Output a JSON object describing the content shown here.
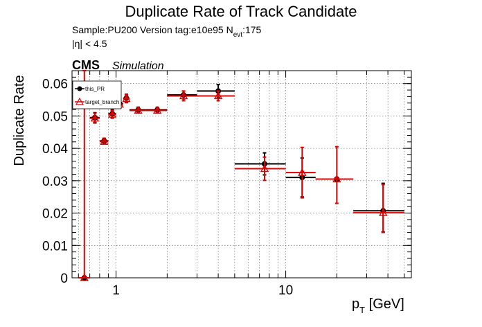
{
  "chart_data": {
    "type": "scatter",
    "title": "Duplicate Rate of Track Candidate",
    "info": {
      "sample_line_prefix": "Sample:PU200   Version tag:e10e95  N",
      "nevt_subscript": "evt",
      "nevt_value": ":175",
      "eta_cut": "|η| < 4.5"
    },
    "cms_label": "CMS",
    "simulation_label": "Simulation",
    "ylabel": "Duplicate Rate",
    "xlabel_main": "p",
    "xlabel_sub": "T",
    "xlabel_unit": " [GeV]",
    "x_scale": "log",
    "xlim": [
      0.55,
      55
    ],
    "ylim": [
      0,
      0.064
    ],
    "y_ticks": [
      0,
      0.01,
      0.02,
      0.03,
      0.04,
      0.05,
      0.06
    ],
    "y_tick_labels": [
      "0",
      "0.01",
      "0.02",
      "0.03",
      "0.04",
      "0.05",
      "0.06"
    ],
    "x_ticks": [
      1,
      10
    ],
    "x_tick_labels": [
      "1",
      "10"
    ],
    "grid": true,
    "legend_position": "top-left",
    "series": [
      {
        "name": "this_PR",
        "color": "#000000",
        "marker": "circle",
        "points": [
          {
            "x": 0.65,
            "xlo": 0.6,
            "xhi": 0.7,
            "y": 0.0,
            "elo": 0.0,
            "ehi": 0.0
          },
          {
            "x": 0.75,
            "xlo": 0.7,
            "xhi": 0.8,
            "y": 0.0495,
            "elo": 0.0015,
            "ehi": 0.0015
          },
          {
            "x": 0.85,
            "xlo": 0.8,
            "xhi": 0.9,
            "y": 0.0423,
            "elo": 0.0008,
            "ehi": 0.0008
          },
          {
            "x": 0.95,
            "xlo": 0.9,
            "xhi": 1.0,
            "y": 0.0507,
            "elo": 0.0012,
            "ehi": 0.0012
          },
          {
            "x": 1.05,
            "xlo": 1.0,
            "xhi": 1.1,
            "y": 0.0538,
            "elo": 0.0012,
            "ehi": 0.0012
          },
          {
            "x": 1.15,
            "xlo": 1.1,
            "xhi": 1.2,
            "y": 0.0555,
            "elo": 0.0012,
            "ehi": 0.0012
          },
          {
            "x": 1.35,
            "xlo": 1.2,
            "xhi": 1.5,
            "y": 0.0519,
            "elo": 0.0008,
            "ehi": 0.0008
          },
          {
            "x": 1.75,
            "xlo": 1.5,
            "xhi": 2.0,
            "y": 0.0519,
            "elo": 0.0008,
            "ehi": 0.0008
          },
          {
            "x": 2.5,
            "xlo": 2.0,
            "xhi": 3.0,
            "y": 0.0565,
            "elo": 0.0012,
            "ehi": 0.0012
          },
          {
            "x": 4.0,
            "xlo": 3.0,
            "xhi": 5.0,
            "y": 0.0577,
            "elo": 0.002,
            "ehi": 0.002
          },
          {
            "x": 7.5,
            "xlo": 5.0,
            "xhi": 10.0,
            "y": 0.0352,
            "elo": 0.0034,
            "ehi": 0.0034
          },
          {
            "x": 12.5,
            "xlo": 10.0,
            "xhi": 15.0,
            "y": 0.031,
            "elo": 0.006,
            "ehi": 0.006
          },
          {
            "x": 20.0,
            "xlo": 15.0,
            "xhi": 25.0,
            "y": 0.0305,
            "elo": 0.0005,
            "ehi": 0.0005
          },
          {
            "x": 37.5,
            "xlo": 25.0,
            "xhi": 50.0,
            "y": 0.0207,
            "elo": 0.0065,
            "ehi": 0.0085
          }
        ]
      },
      {
        "name": "target_branch",
        "color": "#dd0000",
        "marker": "triangle",
        "points": [
          {
            "x": 0.65,
            "xlo": 0.6,
            "xhi": 0.7,
            "y": 0.0,
            "elo": 0.0,
            "ehi": 0.064
          },
          {
            "x": 0.75,
            "xlo": 0.7,
            "xhi": 0.8,
            "y": 0.0493,
            "elo": 0.0015,
            "ehi": 0.0015
          },
          {
            "x": 0.85,
            "xlo": 0.8,
            "xhi": 0.9,
            "y": 0.0421,
            "elo": 0.0008,
            "ehi": 0.0008
          },
          {
            "x": 0.95,
            "xlo": 0.9,
            "xhi": 1.0,
            "y": 0.0505,
            "elo": 0.0012,
            "ehi": 0.0012
          },
          {
            "x": 1.05,
            "xlo": 1.0,
            "xhi": 1.1,
            "y": 0.0536,
            "elo": 0.0012,
            "ehi": 0.0012
          },
          {
            "x": 1.15,
            "xlo": 1.1,
            "xhi": 1.2,
            "y": 0.0553,
            "elo": 0.0012,
            "ehi": 0.0012
          },
          {
            "x": 1.35,
            "xlo": 1.2,
            "xhi": 1.5,
            "y": 0.0517,
            "elo": 0.0008,
            "ehi": 0.0008
          },
          {
            "x": 1.75,
            "xlo": 1.5,
            "xhi": 2.0,
            "y": 0.0517,
            "elo": 0.0008,
            "ehi": 0.0008
          },
          {
            "x": 2.5,
            "xlo": 2.0,
            "xhi": 3.0,
            "y": 0.0562,
            "elo": 0.0015,
            "ehi": 0.0015
          },
          {
            "x": 4.0,
            "xlo": 2.0,
            "xhi": 5.0,
            "y": 0.0562,
            "elo": 0.0015,
            "ehi": 0.0015
          },
          {
            "x": 7.5,
            "xlo": 5.0,
            "xhi": 10.0,
            "y": 0.0337,
            "elo": 0.0036,
            "ehi": 0.0036
          },
          {
            "x": 12.5,
            "xlo": 10.0,
            "xhi": 15.0,
            "y": 0.0325,
            "elo": 0.0078,
            "ehi": 0.0078
          },
          {
            "x": 20.0,
            "xlo": 15.0,
            "xhi": 25.0,
            "y": 0.0305,
            "elo": 0.0075,
            "ehi": 0.01
          },
          {
            "x": 37.5,
            "xlo": 25.0,
            "xhi": 50.0,
            "y": 0.0201,
            "elo": 0.0061,
            "ehi": 0.0087
          }
        ]
      }
    ]
  }
}
